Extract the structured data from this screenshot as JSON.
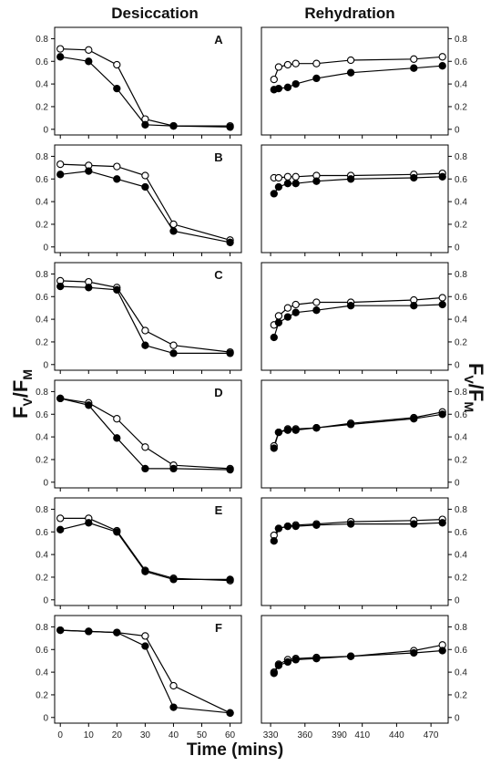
{
  "chart_data": {
    "type": "line",
    "columns": [
      "Desiccation",
      "Rehydration"
    ],
    "xlabel": "Time (mins)",
    "ylabel": {
      "main": "F",
      "sub1": "V",
      "slash": "/F",
      "sub2": "M"
    },
    "y_ticks": [
      "0",
      "0.2",
      "0.4",
      "0.6",
      "0.8"
    ],
    "ylim": [
      -0.05,
      0.9
    ],
    "desiccation_xlim": [
      -2,
      64
    ],
    "desiccation_x_ticks": [
      0,
      10,
      20,
      30,
      40,
      50,
      60
    ],
    "rehydration_xlim": [
      322,
      485
    ],
    "rehydration_x_ticks": [
      330,
      360,
      390,
      410,
      440,
      470
    ],
    "series_styles": [
      {
        "key": "open",
        "fill": "#ffffff",
        "stroke": "#000000"
      },
      {
        "key": "filled",
        "fill": "#000000",
        "stroke": "#000000"
      }
    ],
    "panels": [
      {
        "label": "A",
        "desiccation": {
          "x": [
            0,
            10,
            20,
            30,
            40,
            60
          ],
          "open": [
            0.71,
            0.7,
            0.57,
            0.09,
            0.03,
            0.03
          ],
          "filled": [
            0.64,
            0.6,
            0.36,
            0.04,
            0.03,
            0.02
          ]
        },
        "rehydration": {
          "x": [
            333,
            337,
            345,
            352,
            370,
            400,
            455,
            480
          ],
          "open": [
            0.44,
            0.55,
            0.57,
            0.58,
            0.58,
            0.61,
            0.62,
            0.64
          ],
          "filled": [
            0.35,
            0.36,
            0.37,
            0.4,
            0.45,
            0.5,
            0.54,
            0.56
          ]
        }
      },
      {
        "label": "B",
        "desiccation": {
          "x": [
            0,
            10,
            20,
            30,
            40,
            60
          ],
          "open": [
            0.73,
            0.72,
            0.71,
            0.63,
            0.2,
            0.06
          ],
          "filled": [
            0.64,
            0.67,
            0.6,
            0.53,
            0.14,
            0.04
          ]
        },
        "rehydration": {
          "x": [
            333,
            337,
            345,
            352,
            370,
            400,
            455,
            480
          ],
          "open": [
            0.61,
            0.61,
            0.62,
            0.62,
            0.63,
            0.63,
            0.64,
            0.65
          ],
          "filled": [
            0.47,
            0.53,
            0.56,
            0.56,
            0.58,
            0.6,
            0.61,
            0.62
          ]
        }
      },
      {
        "label": "C",
        "desiccation": {
          "x": [
            0,
            10,
            20,
            30,
            40,
            60
          ],
          "open": [
            0.74,
            0.73,
            0.68,
            0.3,
            0.17,
            0.11
          ],
          "filled": [
            0.69,
            0.68,
            0.66,
            0.17,
            0.1,
            0.1
          ]
        },
        "rehydration": {
          "x": [
            333,
            337,
            345,
            352,
            370,
            400,
            455,
            480
          ],
          "open": [
            0.35,
            0.43,
            0.5,
            0.53,
            0.55,
            0.55,
            0.57,
            0.59
          ],
          "filled": [
            0.24,
            0.37,
            0.42,
            0.46,
            0.48,
            0.52,
            0.52,
            0.53
          ]
        }
      },
      {
        "label": "D",
        "desiccation": {
          "x": [
            0,
            10,
            20,
            30,
            40,
            60
          ],
          "open": [
            0.74,
            0.7,
            0.56,
            0.31,
            0.15,
            0.12
          ],
          "filled": [
            0.74,
            0.68,
            0.39,
            0.12,
            0.12,
            0.11
          ]
        },
        "rehydration": {
          "x": [
            333,
            337,
            345,
            352,
            370,
            400,
            455,
            480
          ],
          "open": [
            0.32,
            0.44,
            0.47,
            0.47,
            0.48,
            0.52,
            0.57,
            0.62
          ],
          "filled": [
            0.3,
            0.44,
            0.46,
            0.46,
            0.48,
            0.51,
            0.56,
            0.6
          ]
        }
      },
      {
        "label": "E",
        "desiccation": {
          "x": [
            0,
            10,
            20,
            30,
            40,
            60
          ],
          "open": [
            0.72,
            0.72,
            0.61,
            0.26,
            0.19,
            0.17
          ],
          "filled": [
            0.62,
            0.68,
            0.6,
            0.25,
            0.18,
            0.18
          ]
        },
        "rehydration": {
          "x": [
            333,
            337,
            345,
            352,
            370,
            400,
            455,
            480
          ],
          "open": [
            0.57,
            0.63,
            0.65,
            0.66,
            0.67,
            0.69,
            0.7,
            0.71
          ],
          "filled": [
            0.52,
            0.63,
            0.65,
            0.65,
            0.66,
            0.67,
            0.67,
            0.68
          ]
        }
      },
      {
        "label": "F",
        "desiccation": {
          "x": [
            0,
            10,
            20,
            30,
            40,
            60
          ],
          "open": [
            0.77,
            0.76,
            0.75,
            0.72,
            0.28,
            0.04
          ],
          "filled": [
            0.77,
            0.76,
            0.75,
            0.63,
            0.09,
            0.04
          ]
        },
        "rehydration": {
          "x": [
            333,
            337,
            345,
            352,
            370,
            400,
            455,
            480
          ],
          "open": [
            0.4,
            0.47,
            0.51,
            0.52,
            0.53,
            0.54,
            0.59,
            0.64
          ],
          "filled": [
            0.39,
            0.46,
            0.49,
            0.51,
            0.52,
            0.54,
            0.57,
            0.59
          ]
        }
      }
    ]
  }
}
